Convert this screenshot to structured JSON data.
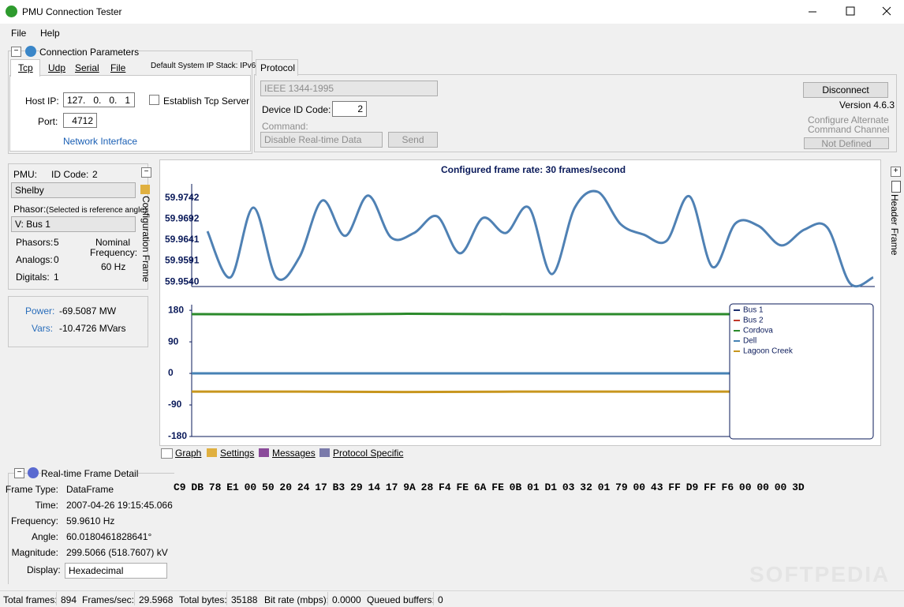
{
  "window": {
    "title": "PMU Connection Tester"
  },
  "menu": [
    "File",
    "Help"
  ],
  "connection": {
    "title": "Connection Parameters",
    "tabs": [
      "Tcp",
      "Udp",
      "Serial",
      "File"
    ],
    "ip_stack": "Default System IP Stack: IPv6",
    "host_ip_label": "Host IP:",
    "host_ip": "127.   0.   0.   1",
    "port_label": "Port:",
    "port": "4712",
    "server": "Establish Tcp Server",
    "network": "Network Interface"
  },
  "protocol": {
    "tab": "Protocol",
    "selected": "IEEE 1344-1995",
    "device_id_label": "Device ID Code:",
    "device_id": "2",
    "command_label": "Command:",
    "command": "Disable Real-time Data",
    "send": "Send",
    "disconnect": "Disconnect",
    "version": "Version 4.6.3",
    "alt_line1": "Configure Alternate",
    "alt_line2": "Command Channel",
    "not_defined": "Not Defined"
  },
  "pmu": {
    "pmu_label": "PMU:",
    "id_label": "ID Code:",
    "id": "2",
    "pmu": "Shelby",
    "phasor_label": "Phasor:",
    "phasor_note": "(Selected is reference angle)",
    "phasor": "V: Bus 1",
    "phasors_label": "Phasors:",
    "phasors": "5",
    "analogs_label": "Analogs:",
    "analogs": "0",
    "digitals_label": "Digitals:",
    "digitals": "1",
    "nominal_line1": "Nominal",
    "nominal_line2": "Frequency:",
    "nominal": "60 Hz",
    "side": "Configuration Frame"
  },
  "power": {
    "power_label": "Power:",
    "power": "-69.5087 MW",
    "vars_label": "Vars:",
    "vars": "-10.4726 MVars"
  },
  "graph_tabs": [
    "Graph",
    "Settings",
    "Messages",
    "Protocol Specific"
  ],
  "header_frame": "Header Frame",
  "detail": {
    "title": "Real-time Frame Detail",
    "rows": [
      [
        "Frame Type:",
        "DataFrame"
      ],
      [
        "Time:",
        "2007-04-26 19:15:45.066"
      ],
      [
        "Frequency:",
        "59.9610 Hz"
      ],
      [
        "Angle:",
        "60.0180461828641°"
      ],
      [
        "Magnitude:",
        "299.5066 (518.7607) kV"
      ]
    ],
    "display_label": "Display:",
    "display": "Hexadecimal",
    "hex": "C9 DB 78 E1 00 50 20 24 17 B3 29 14 17 9A 28 F4 FE 6A FE 0B 01 D1 03 32 01 79 00 43 FF D9 FF F6 00 00 00 3D"
  },
  "status": [
    [
      "Total frames:",
      "894"
    ],
    [
      "Frames/sec:",
      "29.5968"
    ],
    [
      "Total bytes:",
      "35188"
    ],
    [
      "Bit rate (mbps):",
      "0.0000"
    ],
    [
      "Queued buffers:",
      "0"
    ]
  ],
  "watermark": "SOFTPEDIA",
  "chart_data": [
    {
      "type": "line",
      "title": "Configured frame rate: 30 frames/second",
      "ylim": [
        59.9529,
        59.9776
      ],
      "yticks": [
        {
          "value": 59.9742,
          "label": "59.9742"
        },
        {
          "value": 59.9692,
          "label": "59.9692"
        },
        {
          "value": 59.9641,
          "label": "59.9641"
        },
        {
          "value": 59.9591,
          "label": "59.9591"
        },
        {
          "value": 59.954,
          "label": "59.9540"
        }
      ],
      "series": [
        {
          "color": "#4f81b4",
          "values": [
            59.9662,
            59.9551,
            59.9719,
            59.9551,
            59.9599,
            59.9736,
            59.9651,
            59.9748,
            59.9647,
            59.9658,
            59.9698,
            59.9609,
            59.9694,
            59.9658,
            59.9719,
            59.9559,
            59.9719,
            59.9757,
            59.9679,
            59.9654,
            59.9639,
            59.9746,
            59.9576,
            59.9681,
            59.9675,
            59.9628,
            59.9666,
            59.9671,
            59.9536,
            59.9551
          ]
        }
      ]
    },
    {
      "type": "line",
      "ylim": [
        -180,
        196
      ],
      "yticks": [
        180,
        90,
        0,
        -90,
        -180
      ],
      "series": [
        {
          "name": "Bus 1",
          "color": "#1f2f6f",
          "values": [
            0,
            0,
            0,
            0,
            0,
            0
          ]
        },
        {
          "name": "Bus 2",
          "color": "#c0392b",
          "values": [
            0,
            0,
            0,
            0,
            0,
            0
          ]
        },
        {
          "name": "Cordova",
          "color": "#2b8a2b",
          "values": [
            169,
            168,
            170,
            169,
            169,
            169
          ]
        },
        {
          "name": "Dell",
          "color": "#4682b4",
          "values": [
            0,
            0,
            0,
            0,
            0,
            0
          ]
        },
        {
          "name": "Lagoon Creek",
          "color": "#c8961e",
          "values": [
            -52,
            -52,
            -53,
            -52,
            -52,
            -52
          ]
        }
      ]
    }
  ]
}
